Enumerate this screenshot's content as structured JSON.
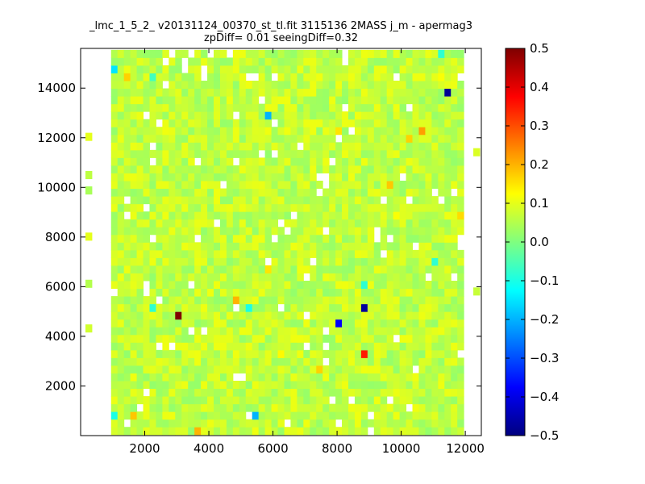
{
  "chart_data": {
    "type": "heatmap",
    "title": "_lmc_1_5_2_ v20131124_00370_st_tl.fit 3115136 2MASS j_m - apermag3",
    "subtitle": "zpDiff= 0.01 seeingDiff=0.32",
    "xlabel": "",
    "ylabel": "",
    "xlim": [
      0,
      12500
    ],
    "ylim": [
      0,
      15600
    ],
    "x_ticks": [
      "2000",
      "4000",
      "6000",
      "8000",
      "10000",
      "12000"
    ],
    "y_ticks": [
      "2000",
      "4000",
      "6000",
      "8000",
      "10000",
      "12000",
      "14000"
    ],
    "colorbar": {
      "colormap": "jet",
      "range": [
        -0.5,
        0.5
      ],
      "ticks": [
        "0.5",
        "0.4",
        "0.3",
        "0.2",
        "0.1",
        "0.0",
        "−0.1",
        "−0.2",
        "−0.3",
        "−0.4",
        "−0.5"
      ]
    },
    "grid": false,
    "notable_cells": [
      {
        "x": 3000,
        "y": 4700,
        "value": 0.5
      },
      {
        "x": 8800,
        "y": 3200,
        "value": 0.35
      },
      {
        "x": 8800,
        "y": 5100,
        "value": -0.47
      },
      {
        "x": 8000,
        "y": 4600,
        "value": -0.38
      },
      {
        "x": 11500,
        "y": 13700,
        "value": -0.48
      },
      {
        "x": 5800,
        "y": 12900,
        "value": -0.2
      },
      {
        "x": 5400,
        "y": 800,
        "value": -0.2
      },
      {
        "x": 1000,
        "y": 14800,
        "value": -0.15
      },
      {
        "x": 1000,
        "y": 800,
        "value": -0.1
      },
      {
        "x": 4800,
        "y": 5600,
        "value": 0.2
      },
      {
        "x": 3600,
        "y": 300,
        "value": 0.2
      },
      {
        "x": 1600,
        "y": 800,
        "value": 0.18
      },
      {
        "x": 1400,
        "y": 14300,
        "value": 0.17
      },
      {
        "x": 8000,
        "y": 12300,
        "value": 0.15
      },
      {
        "x": 10600,
        "y": 12300,
        "value": 0.22
      },
      {
        "x": 10200,
        "y": 11900,
        "value": 0.17
      },
      {
        "x": 9600,
        "y": 10000,
        "value": 0.18
      },
      {
        "x": 11800,
        "y": 9000,
        "value": 0.16
      },
      {
        "x": 5800,
        "y": 6700,
        "value": 0.15
      },
      {
        "x": 7400,
        "y": 2700,
        "value": 0.17
      },
      {
        "x": 11200,
        "y": 14300,
        "value": 0.12
      },
      {
        "x": 5200,
        "y": 5200,
        "value": -0.1
      },
      {
        "x": 2200,
        "y": 5200,
        "value": -0.08
      },
      {
        "x": 8800,
        "y": 6000,
        "value": -0.08
      },
      {
        "x": 11000,
        "y": 7000,
        "value": -0.08
      },
      {
        "x": 11200,
        "y": 15300,
        "value": -0.08
      },
      {
        "x": 2200,
        "y": 14500,
        "value": -0.06
      },
      {
        "x": 2200,
        "y": 2700,
        "value": 0.1
      },
      {
        "x": 6200,
        "y": 3200,
        "value": 0.13
      },
      {
        "x": 9800,
        "y": 8800,
        "value": 0.12
      }
    ]
  }
}
